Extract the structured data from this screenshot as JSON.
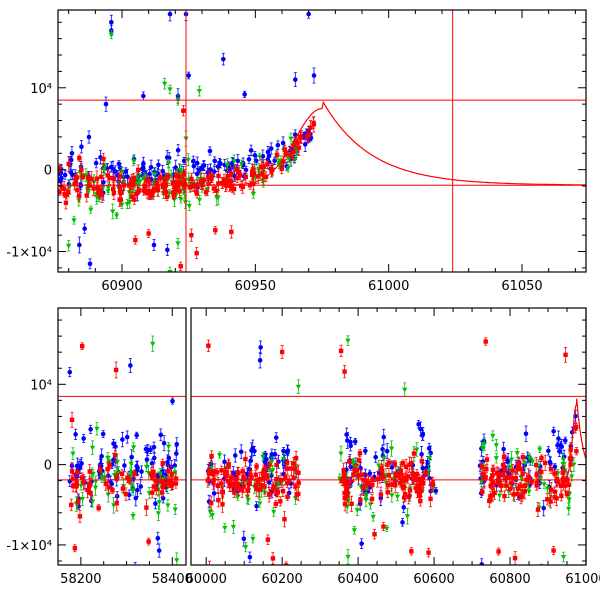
{
  "chart_data": [
    {
      "type": "scatter",
      "title": "",
      "xlabel": "",
      "ylabel": "",
      "xlim": [
        60876,
        61074
      ],
      "ylim": [
        -12500,
        19500
      ],
      "xticks": [
        60900,
        60950,
        61000,
        61050
      ],
      "xtick_labels": [
        "60900",
        "60950",
        "61000",
        "61050"
      ],
      "yticks": [
        -10000,
        0,
        10000
      ],
      "ytick_labels": [
        "-1×10⁴",
        "0",
        "10⁴"
      ],
      "hlines": [
        8500,
        -1900
      ],
      "vlines": [
        60924,
        61024
      ],
      "model_curve": {
        "peak_x": 60975,
        "peak_y": 8500,
        "base_y": -1900,
        "x_start": 60940,
        "x_end": 61074
      },
      "series": [
        {
          "color": "#0000ff",
          "marker": "circle",
          "x_range": [
            60876,
            60971
          ],
          "baseline": -400,
          "trend_to": 4500,
          "scatter": 2300,
          "count": 140,
          "outliers": [
            [
              60896,
              18000
            ],
            [
              60896,
              17000
            ],
            [
              60918,
              19000
            ],
            [
              60924,
              19000
            ],
            [
              60938,
              13500
            ],
            [
              60925,
              11500
            ],
            [
              60908,
              9000
            ],
            [
              60921,
              9000
            ],
            [
              60946,
              9200
            ],
            [
              60965,
              11000
            ],
            [
              60970,
              19000
            ],
            [
              60972,
              11500
            ],
            [
              60894,
              8000
            ],
            [
              60886,
              -7200
            ],
            [
              60884,
              -9200
            ],
            [
              60888,
              -11500
            ],
            [
              60912,
              -9200
            ],
            [
              60917,
              -9800
            ]
          ]
        },
        {
          "color": "#00c000",
          "marker": "triangle",
          "x_range": [
            60876,
            60966
          ],
          "baseline": -2000,
          "trend_to": 2500,
          "scatter": 2600,
          "count": 110,
          "outliers": [
            [
              60896,
              16500
            ],
            [
              60916,
              10500
            ],
            [
              60918,
              9800
            ],
            [
              60921,
              8500
            ],
            [
              60929,
              9600
            ],
            [
              60882,
              -6200
            ],
            [
              60880,
              -9300
            ],
            [
              60898,
              -5600
            ],
            [
              60918,
              -12500
            ],
            [
              60921,
              -9000
            ],
            [
              60902,
              -4200
            ],
            [
              60924,
              3800
            ],
            [
              60958,
              1800
            ]
          ]
        },
        {
          "color": "#ff0000",
          "marker": "square",
          "x_range": [
            60876,
            60972
          ],
          "baseline": -2000,
          "trend_to": 5500,
          "scatter": 1700,
          "count": 170,
          "outliers": [
            [
              60923,
              7200
            ],
            [
              60880,
              700
            ],
            [
              60884,
              1400
            ],
            [
              60893,
              1300
            ],
            [
              60905,
              -8600
            ],
            [
              60910,
              -7800
            ],
            [
              60926,
              -8000
            ],
            [
              60935,
              -7400
            ],
            [
              60941,
              -7600
            ],
            [
              60928,
              -10200
            ],
            [
              60922,
              -11800
            ]
          ]
        }
      ]
    },
    {
      "type": "scatter",
      "title": "",
      "xlabel": "",
      "ylabel": "",
      "xlim": [
        58150,
        61000
      ],
      "ylim": [
        -12500,
        19500
      ],
      "broken_axis": true,
      "panels": [
        {
          "xlim": [
            58150,
            58430
          ],
          "xticks": [
            58200,
            58400
          ],
          "xtick_labels": [
            "58200",
            "58400"
          ]
        },
        {
          "xlim": [
            59960,
            61000
          ],
          "xticks": [
            60000,
            60200,
            60400,
            60600,
            60800,
            61000
          ],
          "xtick_labels": [
            "60000",
            "60200",
            "60400",
            "60600",
            "60800",
            "61000"
          ]
        }
      ],
      "yticks": [
        -10000,
        0,
        10000
      ],
      "ytick_labels": [
        "-1×10⁴",
        "0",
        "10⁴"
      ],
      "hlines": [
        8500,
        -1900
      ],
      "vlines": [
        61000
      ],
      "observing_seasons": [
        [
          58175,
          58410
        ],
        [
          60000,
          60245
        ],
        [
          60350,
          60605
        ],
        [
          60720,
          60975
        ]
      ],
      "model_curve": {
        "peak_x": 60975,
        "peak_y": 8500,
        "base_y": -1900
      },
      "series": [
        {
          "color": "#0000ff",
          "marker": "circle",
          "baseline": -200,
          "scatter": 3200,
          "count": 260
        },
        {
          "color": "#00c000",
          "marker": "triangle",
          "baseline": -2000,
          "scatter": 3300,
          "count": 170
        },
        {
          "color": "#ff0000",
          "marker": "square",
          "baseline": -2000,
          "scatter": 2000,
          "count": 360
        }
      ]
    }
  ]
}
